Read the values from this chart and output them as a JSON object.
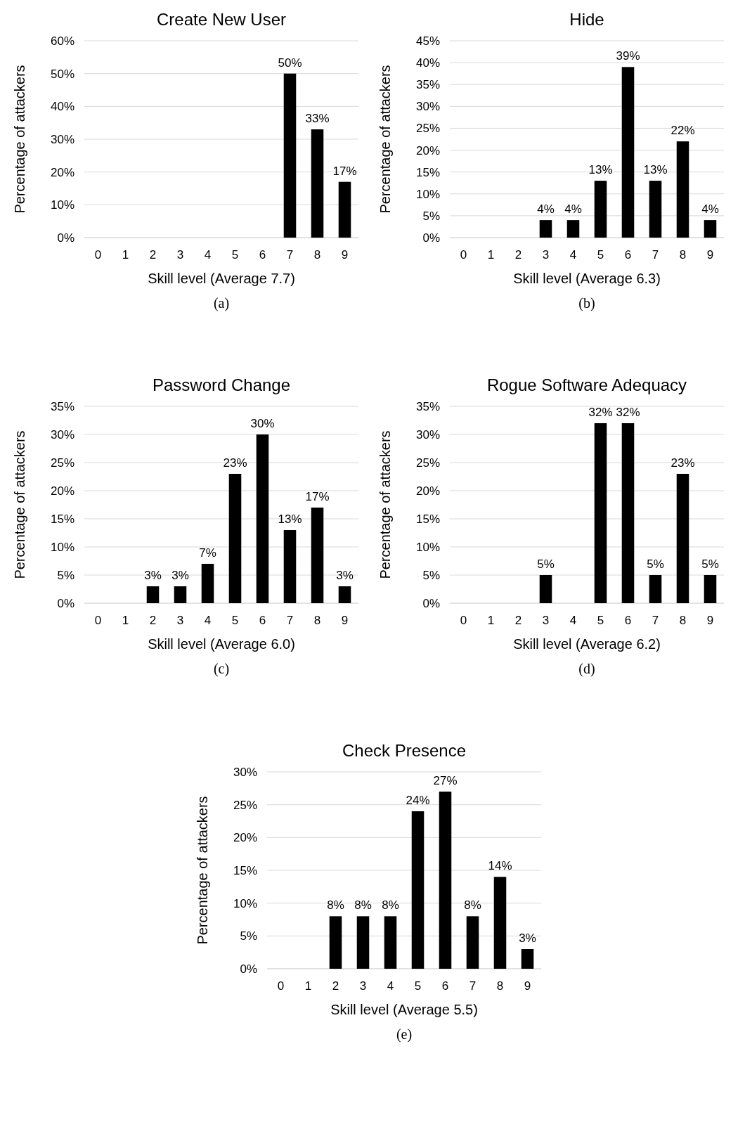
{
  "chart_data": [
    {
      "type": "bar",
      "title": "Create New User",
      "xlabel": "Skill level (Average 7.7)",
      "ylabel": "Percentage of attackers",
      "categories": [
        "0",
        "1",
        "2",
        "3",
        "4",
        "5",
        "6",
        "7",
        "8",
        "9"
      ],
      "values": [
        0,
        0,
        0,
        0,
        0,
        0,
        0,
        50,
        33,
        17
      ],
      "value_labels": [
        null,
        null,
        null,
        null,
        null,
        null,
        null,
        "50%",
        "33%",
        "17%"
      ],
      "color": "#000000",
      "ylim": [
        0,
        60
      ],
      "yticks": [
        {
          "value": 0,
          "label": "0%"
        },
        {
          "value": 10,
          "label": "10%"
        },
        {
          "value": 20,
          "label": "20%"
        },
        {
          "value": 30,
          "label": "30%"
        },
        {
          "value": 40,
          "label": "40%"
        },
        {
          "value": 50,
          "label": "50%"
        },
        {
          "value": 60,
          "label": "60%"
        }
      ],
      "grid": "y",
      "annotations": [
        "(a)"
      ]
    },
    {
      "type": "bar",
      "title": "Hide",
      "xlabel": "Skill level (Average 6.3)",
      "ylabel": "Percentage of attackers",
      "categories": [
        "0",
        "1",
        "2",
        "3",
        "4",
        "5",
        "6",
        "7",
        "8",
        "9"
      ],
      "values": [
        0,
        0,
        0,
        4,
        4,
        13,
        39,
        13,
        22,
        4
      ],
      "value_labels": [
        null,
        null,
        null,
        "4%",
        "4%",
        "13%",
        "39%",
        "13%",
        "22%",
        "4%"
      ],
      "color": "#000000",
      "ylim": [
        0,
        45
      ],
      "yticks": [
        {
          "value": 0,
          "label": "0%"
        },
        {
          "value": 5,
          "label": "5%"
        },
        {
          "value": 10,
          "label": "10%"
        },
        {
          "value": 15,
          "label": "15%"
        },
        {
          "value": 20,
          "label": "20%"
        },
        {
          "value": 25,
          "label": "25%"
        },
        {
          "value": 30,
          "label": "30%"
        },
        {
          "value": 35,
          "label": "35%"
        },
        {
          "value": 40,
          "label": "40%"
        },
        {
          "value": 45,
          "label": "45%"
        }
      ],
      "grid": "y",
      "annotations": [
        "(b)"
      ]
    },
    {
      "type": "bar",
      "title": "Password Change",
      "xlabel": "Skill level (Average 6.0)",
      "ylabel": "Percentage of attackers",
      "categories": [
        "0",
        "1",
        "2",
        "3",
        "4",
        "5",
        "6",
        "7",
        "8",
        "9"
      ],
      "values": [
        0,
        0,
        3,
        3,
        7,
        23,
        30,
        13,
        17,
        3
      ],
      "value_labels": [
        null,
        null,
        "3%",
        "3%",
        "7%",
        "23%",
        "30%",
        "13%",
        "17%",
        "3%"
      ],
      "color": "#000000",
      "ylim": [
        0,
        35
      ],
      "yticks": [
        {
          "value": 0,
          "label": "0%"
        },
        {
          "value": 5,
          "label": "5%"
        },
        {
          "value": 10,
          "label": "10%"
        },
        {
          "value": 15,
          "label": "15%"
        },
        {
          "value": 20,
          "label": "20%"
        },
        {
          "value": 25,
          "label": "25%"
        },
        {
          "value": 30,
          "label": "30%"
        },
        {
          "value": 35,
          "label": "35%"
        }
      ],
      "grid": "y",
      "annotations": [
        "(c)"
      ]
    },
    {
      "type": "bar",
      "title": "Rogue Software Adequacy",
      "xlabel": "Skill level (Average 6.2)",
      "ylabel": "Percentage of attackers",
      "categories": [
        "0",
        "1",
        "2",
        "3",
        "4",
        "5",
        "6",
        "7",
        "8",
        "9"
      ],
      "values": [
        0,
        0,
        0,
        5,
        0,
        32,
        32,
        5,
        23,
        5
      ],
      "value_labels": [
        null,
        null,
        null,
        "5%",
        null,
        "32%",
        "32%",
        "5%",
        "23%",
        "5%"
      ],
      "color": "#000000",
      "ylim": [
        0,
        35
      ],
      "yticks": [
        {
          "value": 0,
          "label": "0%"
        },
        {
          "value": 5,
          "label": "5%"
        },
        {
          "value": 10,
          "label": "10%"
        },
        {
          "value": 15,
          "label": "15%"
        },
        {
          "value": 20,
          "label": "20%"
        },
        {
          "value": 25,
          "label": "25%"
        },
        {
          "value": 30,
          "label": "30%"
        },
        {
          "value": 35,
          "label": "35%"
        }
      ],
      "grid": "y",
      "annotations": [
        "(d)"
      ]
    },
    {
      "type": "bar",
      "title": "Check Presence",
      "xlabel": "Skill level (Average 5.5)",
      "ylabel": "Percentage of attackers",
      "categories": [
        "0",
        "1",
        "2",
        "3",
        "4",
        "5",
        "6",
        "7",
        "8",
        "9"
      ],
      "values": [
        0,
        0,
        8,
        8,
        8,
        24,
        27,
        8,
        14,
        3
      ],
      "value_labels": [
        null,
        null,
        "8%",
        "8%",
        "8%",
        "24%",
        "27%",
        "8%",
        "14%",
        "3%"
      ],
      "color": "#000000",
      "ylim": [
        0,
        30
      ],
      "yticks": [
        {
          "value": 0,
          "label": "0%"
        },
        {
          "value": 5,
          "label": "5%"
        },
        {
          "value": 10,
          "label": "10%"
        },
        {
          "value": 15,
          "label": "15%"
        },
        {
          "value": 20,
          "label": "20%"
        },
        {
          "value": 25,
          "label": "25%"
        },
        {
          "value": 30,
          "label": "30%"
        }
      ],
      "grid": "y",
      "annotations": [
        "(e)"
      ]
    }
  ]
}
